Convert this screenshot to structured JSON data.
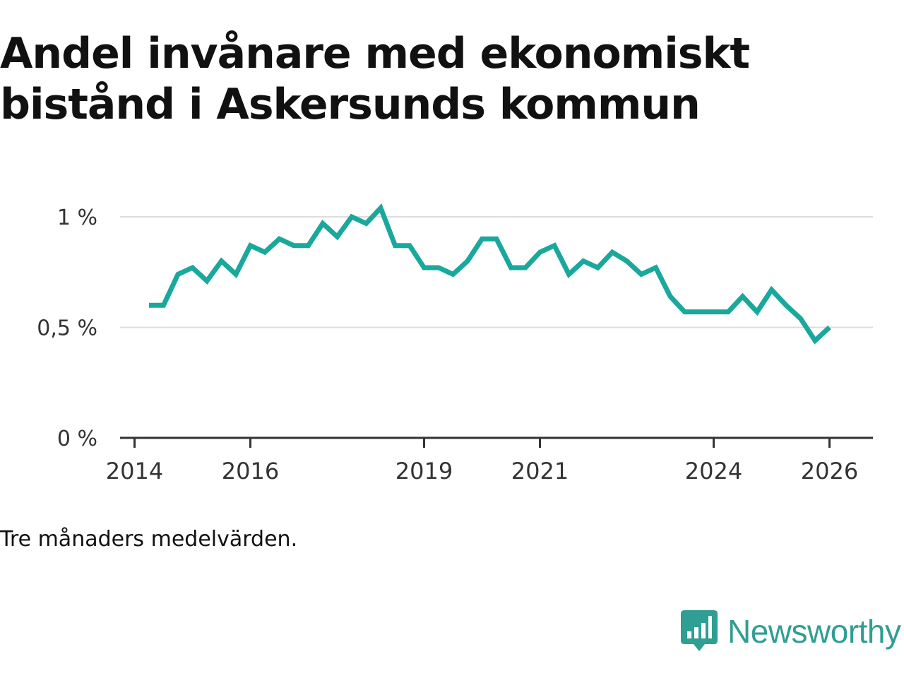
{
  "title": "Andel invånare med ekonomiskt bistånd i Askersunds kommun",
  "caption": "Tre månaders medelvärden.",
  "brand": {
    "name": "Newsworthy",
    "icon": "newsworthy-logo-icon",
    "color": "#2f9e93"
  },
  "chart_data": {
    "type": "line",
    "title": "Andel invånare med ekonomiskt bistånd i Askersunds kommun",
    "xlabel": "",
    "ylabel": "",
    "xlim": [
      2013.75,
      2026.75
    ],
    "ylim": [
      0,
      1.0
    ],
    "grid": true,
    "y_ticks": [
      {
        "value": 0,
        "label": "0 %"
      },
      {
        "value": 0.5,
        "label": "0,5 %"
      },
      {
        "value": 1.0,
        "label": "1 %"
      }
    ],
    "x_ticks": [
      {
        "value": 2014,
        "label": "2014"
      },
      {
        "value": 2016,
        "label": "2016"
      },
      {
        "value": 2019,
        "label": "2019"
      },
      {
        "value": 2021,
        "label": "2021"
      },
      {
        "value": 2024,
        "label": "2024"
      },
      {
        "value": 2026,
        "label": "2026"
      }
    ],
    "series": [
      {
        "name": "Andel invånare med ekonomiskt bistånd",
        "color": "#1aa89c",
        "x": [
          2014.25,
          2014.5,
          2014.75,
          2015.0,
          2015.25,
          2015.5,
          2015.75,
          2016.0,
          2016.25,
          2016.5,
          2016.75,
          2017.0,
          2017.25,
          2017.5,
          2017.75,
          2018.0,
          2018.25,
          2018.5,
          2018.75,
          2019.0,
          2019.25,
          2019.5,
          2019.75,
          2020.0,
          2020.25,
          2020.5,
          2020.75,
          2021.0,
          2021.25,
          2021.5,
          2021.75,
          2022.0,
          2022.25,
          2022.5,
          2022.75,
          2023.0,
          2023.25,
          2023.5,
          2023.75,
          2024.0,
          2024.25,
          2024.5,
          2024.75,
          2025.0,
          2025.25,
          2025.5,
          2025.75,
          2026.0
        ],
        "values": [
          0.6,
          0.6,
          0.74,
          0.77,
          0.71,
          0.8,
          0.74,
          0.87,
          0.84,
          0.9,
          0.87,
          0.87,
          0.97,
          0.91,
          1.0,
          0.97,
          1.04,
          0.87,
          0.87,
          0.77,
          0.77,
          0.74,
          0.8,
          0.9,
          0.9,
          0.77,
          0.77,
          0.84,
          0.87,
          0.74,
          0.8,
          0.77,
          0.84,
          0.8,
          0.74,
          0.77,
          0.64,
          0.57,
          0.57,
          0.57,
          0.57,
          0.64,
          0.57,
          0.67,
          0.6,
          0.54,
          0.44,
          0.5
        ]
      }
    ]
  }
}
